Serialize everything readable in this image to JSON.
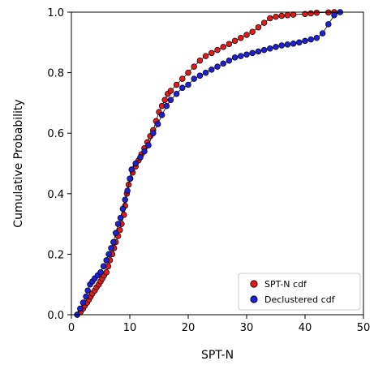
{
  "chart_data": {
    "type": "scatter",
    "xlabel": "SPT-N",
    "ylabel": "Cumulative Probability",
    "xlim": [
      0,
      50
    ],
    "ylim": [
      0,
      1.0
    ],
    "xticks": [
      "0",
      "10",
      "20",
      "30",
      "40",
      "50"
    ],
    "yticks": [
      "0.0",
      "0.2",
      "0.4",
      "0.6",
      "0.8",
      "1.0"
    ],
    "grid": false,
    "legend_position": "lower-right",
    "series": [
      {
        "name": "SPT-N cdf",
        "color": "#e31a1c",
        "connect_line": true,
        "points": [
          [
            1,
            0.0
          ],
          [
            1.6,
            0.01
          ],
          [
            2,
            0.02
          ],
          [
            2.3,
            0.03
          ],
          [
            2.7,
            0.04
          ],
          [
            3,
            0.05
          ],
          [
            3.3,
            0.06
          ],
          [
            3.6,
            0.07
          ],
          [
            4,
            0.08
          ],
          [
            4.3,
            0.09
          ],
          [
            4.7,
            0.1
          ],
          [
            5,
            0.11
          ],
          [
            5.3,
            0.12
          ],
          [
            5.6,
            0.13
          ],
          [
            6,
            0.14
          ],
          [
            6.3,
            0.16
          ],
          [
            6.6,
            0.18
          ],
          [
            7,
            0.2
          ],
          [
            7.3,
            0.22
          ],
          [
            7.6,
            0.24
          ],
          [
            8,
            0.26
          ],
          [
            8.3,
            0.28
          ],
          [
            8.6,
            0.3
          ],
          [
            9,
            0.33
          ],
          [
            9.2,
            0.36
          ],
          [
            9.5,
            0.4
          ],
          [
            9.8,
            0.43
          ],
          [
            10.1,
            0.45
          ],
          [
            10.5,
            0.47
          ],
          [
            11,
            0.49
          ],
          [
            11.5,
            0.51
          ],
          [
            12,
            0.53
          ],
          [
            12.5,
            0.55
          ],
          [
            13,
            0.57
          ],
          [
            13.5,
            0.59
          ],
          [
            14,
            0.61
          ],
          [
            14.5,
            0.64
          ],
          [
            15,
            0.67
          ],
          [
            15.5,
            0.69
          ],
          [
            16,
            0.71
          ],
          [
            16.5,
            0.73
          ],
          [
            17,
            0.74
          ],
          [
            18,
            0.76
          ],
          [
            19,
            0.78
          ],
          [
            20,
            0.8
          ],
          [
            21,
            0.82
          ],
          [
            22,
            0.84
          ],
          [
            23,
            0.855
          ],
          [
            24,
            0.865
          ],
          [
            25,
            0.875
          ],
          [
            26,
            0.885
          ],
          [
            27,
            0.895
          ],
          [
            28,
            0.905
          ],
          [
            29,
            0.915
          ],
          [
            30,
            0.925
          ],
          [
            31,
            0.935
          ],
          [
            32,
            0.95
          ],
          [
            33,
            0.965
          ],
          [
            34,
            0.98
          ],
          [
            35,
            0.985
          ],
          [
            36,
            0.988
          ],
          [
            37,
            0.99
          ],
          [
            38,
            0.992
          ],
          [
            40,
            0.994
          ],
          [
            41,
            0.996
          ],
          [
            42,
            0.998
          ],
          [
            44,
            0.999
          ],
          [
            45,
            1.0
          ]
        ]
      },
      {
        "name": "Declustered cdf",
        "color": "#1f1fd8",
        "connect_line": true,
        "points": [
          [
            1,
            0.0
          ],
          [
            1.5,
            0.02
          ],
          [
            2,
            0.04
          ],
          [
            2.5,
            0.06
          ],
          [
            2.8,
            0.08
          ],
          [
            3.2,
            0.1
          ],
          [
            3.6,
            0.11
          ],
          [
            4,
            0.12
          ],
          [
            4.5,
            0.13
          ],
          [
            5,
            0.14
          ],
          [
            5.5,
            0.16
          ],
          [
            6,
            0.18
          ],
          [
            6.4,
            0.2
          ],
          [
            6.8,
            0.22
          ],
          [
            7.2,
            0.24
          ],
          [
            7.6,
            0.27
          ],
          [
            8,
            0.3
          ],
          [
            8.4,
            0.32
          ],
          [
            8.8,
            0.35
          ],
          [
            9.2,
            0.38
          ],
          [
            9.6,
            0.41
          ],
          [
            10,
            0.45
          ],
          [
            10.3,
            0.48
          ],
          [
            11,
            0.5
          ],
          [
            11.8,
            0.52
          ],
          [
            12.5,
            0.54
          ],
          [
            13.2,
            0.56
          ],
          [
            14,
            0.6
          ],
          [
            14.8,
            0.63
          ],
          [
            15.5,
            0.66
          ],
          [
            16.3,
            0.69
          ],
          [
            17,
            0.71
          ],
          [
            18,
            0.73
          ],
          [
            19,
            0.75
          ],
          [
            20,
            0.76
          ],
          [
            21,
            0.78
          ],
          [
            22,
            0.79
          ],
          [
            23,
            0.8
          ],
          [
            24,
            0.81
          ],
          [
            25,
            0.82
          ],
          [
            26,
            0.83
          ],
          [
            27,
            0.84
          ],
          [
            28,
            0.85
          ],
          [
            29,
            0.855
          ],
          [
            30,
            0.86
          ],
          [
            31,
            0.865
          ],
          [
            32,
            0.87
          ],
          [
            33,
            0.875
          ],
          [
            34,
            0.88
          ],
          [
            35,
            0.885
          ],
          [
            36,
            0.89
          ],
          [
            37,
            0.893
          ],
          [
            38,
            0.896
          ],
          [
            39,
            0.9
          ],
          [
            40,
            0.905
          ],
          [
            41,
            0.91
          ],
          [
            42,
            0.915
          ],
          [
            43,
            0.93
          ],
          [
            44,
            0.96
          ],
          [
            45,
            0.99
          ],
          [
            46,
            1.0
          ]
        ]
      }
    ]
  }
}
